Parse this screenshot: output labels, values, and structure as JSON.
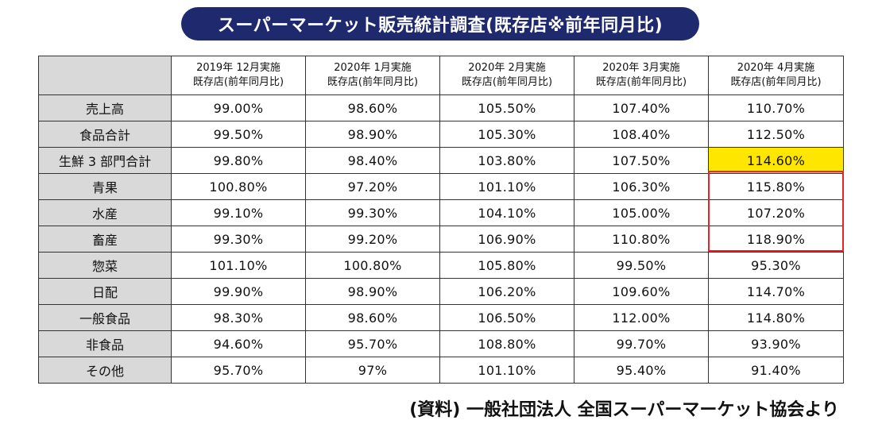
{
  "title": "スーパーマーケット販売統計調査(既存店※前年同月比)",
  "source": "(資料) 一般社団法人 全国スーパーマーケット協会より",
  "colors": {
    "title_bg": "#1f2a6e",
    "header_bg": "#d9d9d9",
    "highlight": "#ffe600",
    "frame": "#e8232a"
  },
  "chart_data": {
    "type": "table",
    "title": "スーパーマーケット販売統計調査(既存店※前年同月比)",
    "columns": [
      {
        "line1": "2019年 12月実施",
        "line2": "既存店(前年同月比)"
      },
      {
        "line1": "2020年 1月実施",
        "line2": "既存店(前年同月比)"
      },
      {
        "line1": "2020年 2月実施",
        "line2": "既存店(前年同月比)"
      },
      {
        "line1": "2020年 3月実施",
        "line2": "既存店(前年同月比)"
      },
      {
        "line1": "2020年 4月実施",
        "line2": "既存店(前年同月比)"
      }
    ],
    "rows": [
      {
        "label": "売上高",
        "values": [
          "99.00%",
          "98.60%",
          "105.50%",
          "107.40%",
          "110.70%"
        ]
      },
      {
        "label": "食品合計",
        "values": [
          "99.50%",
          "98.90%",
          "105.30%",
          "108.40%",
          "112.50%"
        ]
      },
      {
        "label": "生鮮 3 部門合計",
        "values": [
          "99.80%",
          "98.40%",
          "103.80%",
          "107.50%",
          "114.60%"
        ]
      },
      {
        "label": "青果",
        "values": [
          "100.80%",
          "97.20%",
          "101.10%",
          "106.30%",
          "115.80%"
        ]
      },
      {
        "label": "水産",
        "values": [
          "99.10%",
          "99.30%",
          "104.10%",
          "105.00%",
          "107.20%"
        ]
      },
      {
        "label": "畜産",
        "values": [
          "99.30%",
          "99.20%",
          "106.90%",
          "110.80%",
          "118.90%"
        ]
      },
      {
        "label": "惣菜",
        "values": [
          "101.10%",
          "100.80%",
          "105.80%",
          "99.50%",
          "95.30%"
        ]
      },
      {
        "label": "日配",
        "values": [
          "99.90%",
          "98.90%",
          "106.20%",
          "109.60%",
          "114.70%"
        ]
      },
      {
        "label": "一般食品",
        "values": [
          "98.30%",
          "98.60%",
          "106.50%",
          "112.00%",
          "114.80%"
        ]
      },
      {
        "label": "非食品",
        "values": [
          "94.60%",
          "95.70%",
          "108.80%",
          "99.70%",
          "93.90%"
        ]
      },
      {
        "label": "その他",
        "values": [
          "95.70%",
          "97%",
          "101.10%",
          "95.40%",
          "91.40%"
        ]
      }
    ],
    "highlight_cell": {
      "row": 2,
      "col": 4
    },
    "framed_cells": {
      "rows": [
        3,
        4,
        5
      ],
      "col": 4
    }
  }
}
